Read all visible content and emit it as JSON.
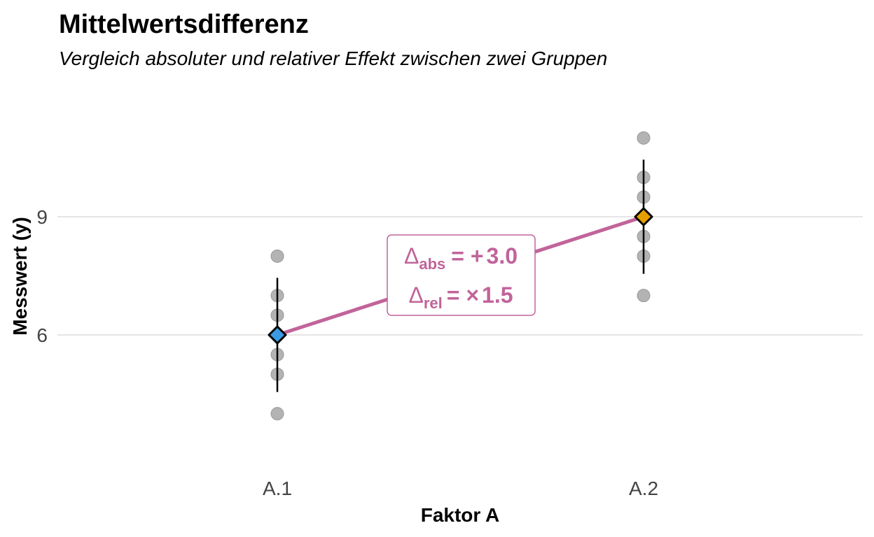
{
  "chart_data": {
    "type": "scatter",
    "title": "Mittelwertsdifferenz",
    "subtitle": "Vergleich absoluter und relativer Effekt zwischen zwei Gruppen",
    "xlabel": "Faktor A",
    "ylabel": "Messwert (y)",
    "categories": [
      "A.1",
      "A.2"
    ],
    "y_ticks": [
      6,
      9
    ],
    "ylim": [
      2.6,
      11.8
    ],
    "grid": "horizontal-major",
    "points": [
      {
        "category": "A.1",
        "values": [
          4.0,
          5.0,
          5.5,
          6.5,
          7.0,
          8.0
        ]
      },
      {
        "category": "A.2",
        "values": [
          7.0,
          8.0,
          8.5,
          9.5,
          10.0,
          11.0
        ]
      }
    ],
    "means": [
      {
        "category": "A.1",
        "mean": 6.0,
        "lower": 4.55,
        "upper": 7.45,
        "color": "#3B9AE1"
      },
      {
        "category": "A.2",
        "mean": 9.0,
        "lower": 7.55,
        "upper": 10.45,
        "color": "#E69F00"
      }
    ],
    "connector_color": "#C1649A",
    "point_color": "#A6A6A6",
    "annotation": {
      "delta_symbol": "Δ",
      "abs_sub": "abs",
      "abs_op": "= +",
      "abs_value": "3.0",
      "rel_sub": "rel",
      "rel_op": "= ×",
      "rel_value": "1.5",
      "color": "#C1649A"
    }
  }
}
